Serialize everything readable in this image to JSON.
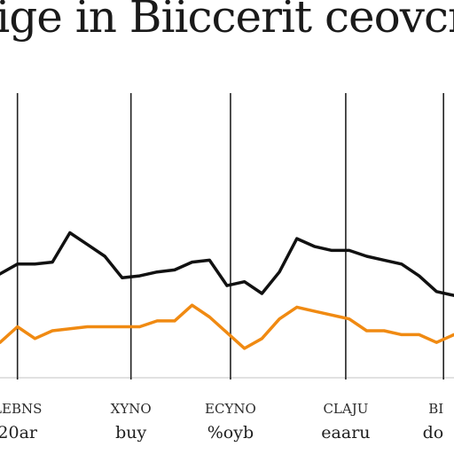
{
  "chart_data": {
    "type": "line",
    "title": "Bige in Biiccerit ceovcrs",
    "xlabel": "",
    "ylabel": "",
    "grid": {
      "vertical": true,
      "horizontal": false
    },
    "legend": "none",
    "x": [
      0,
      1,
      2,
      3,
      4,
      5,
      6,
      7,
      8,
      9,
      10,
      11,
      12,
      13,
      14,
      15,
      16,
      17,
      18,
      19,
      20,
      21,
      22,
      23,
      24,
      25,
      26
    ],
    "ylim": [
      0,
      100
    ],
    "xlim": [
      0,
      26
    ],
    "tick_labels": [
      {
        "x": 1.0,
        "top": "LEBNS",
        "bottom": "20ar"
      },
      {
        "x": 7.5,
        "top": "XYNO",
        "bottom": "buy"
      },
      {
        "x": 13.2,
        "top": "ECYNO",
        "bottom": "%oyb"
      },
      {
        "x": 19.8,
        "top": "CLAJU",
        "bottom": "eaaru"
      },
      {
        "x": 25.4,
        "top": "BI",
        "bottom": "do"
      }
    ],
    "series": [
      {
        "color": "#111111",
        "values": [
          53,
          58,
          58,
          59,
          74,
          68,
          62,
          51,
          52,
          54,
          55,
          59,
          60,
          47,
          49,
          43,
          54,
          71,
          67,
          65,
          65,
          62,
          60,
          58,
          52,
          44,
          42
        ]
      },
      {
        "color": "#f08a12",
        "values": [
          18,
          26,
          20,
          24,
          25,
          26,
          26,
          26,
          26,
          29,
          29,
          37,
          31,
          23,
          15,
          20,
          30,
          36,
          34,
          32,
          30,
          24,
          24,
          22,
          22,
          18,
          22
        ]
      }
    ]
  }
}
